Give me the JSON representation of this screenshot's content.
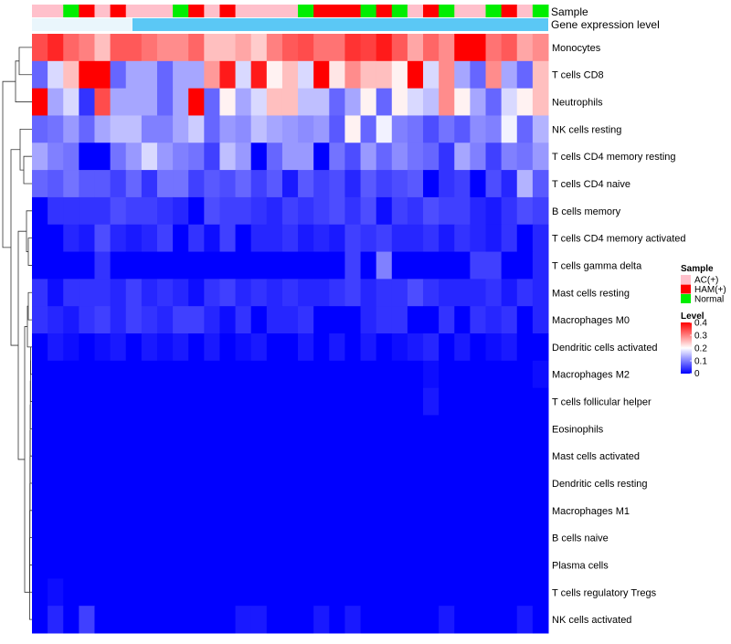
{
  "chart_data": {
    "type": "heatmap",
    "annotation_labels": [
      "Sample",
      "Gene expression level"
    ],
    "rows": [
      "Monocytes",
      "T cells CD8",
      "Neutrophils",
      "NK cells resting",
      "T cells CD4 memory resting",
      "T cells CD4 naive",
      "B cells memory",
      "T cells CD4 memory activated",
      "T cells gamma delta",
      "Mast cells resting",
      "Macrophages M0",
      "Dendritic cells activated",
      "Macrophages M2",
      "T cells follicular helper",
      "Eosinophils",
      "Mast cells activated",
      "Dendritic cells resting",
      "Macrophages M1",
      "B cells naive",
      "Plasma cells",
      "T cells regulatory  Tregs",
      "NK cells activated"
    ],
    "sample_groups": [
      "A",
      "A",
      "N",
      "H",
      "A",
      "H",
      "A",
      "A",
      "A",
      "N",
      "H",
      "A",
      "H",
      "A",
      "A",
      "A",
      "A",
      "N",
      "H",
      "H",
      "H",
      "N",
      "H",
      "N",
      "A",
      "H",
      "N",
      "A",
      "A",
      "N",
      "H",
      "A",
      "N"
    ],
    "values": [
      [
        0.34,
        0.37,
        0.32,
        0.3,
        0.25,
        0.33,
        0.33,
        0.31,
        0.29,
        0.29,
        0.32,
        0.25,
        0.25,
        0.27,
        0.24,
        0.3,
        0.33,
        0.34,
        0.31,
        0.31,
        0.36,
        0.35,
        0.38,
        0.33,
        0.27,
        0.32,
        0.29,
        0.4,
        0.4,
        0.31,
        0.33,
        0.27,
        0.29
      ],
      [
        0.08,
        0.17,
        0.25,
        0.4,
        0.4,
        0.08,
        0.13,
        0.13,
        0.08,
        0.13,
        0.13,
        0.28,
        0.38,
        0.17,
        0.38,
        0.21,
        0.25,
        0.17,
        0.4,
        0.22,
        0.29,
        0.25,
        0.25,
        0.21,
        0.4,
        0.17,
        0.29,
        0.13,
        0.08,
        0.29,
        0.13,
        0.08,
        0.25
      ],
      [
        0.4,
        0.13,
        0.17,
        0.04,
        0.34,
        0.13,
        0.13,
        0.13,
        0.08,
        0.13,
        0.4,
        0.08,
        0.21,
        0.13,
        0.17,
        0.25,
        0.25,
        0.15,
        0.15,
        0.08,
        0.13,
        0.21,
        0.08,
        0.21,
        0.17,
        0.15,
        0.29,
        0.21,
        0.13,
        0.08,
        0.17,
        0.21,
        0.25
      ],
      [
        0.08,
        0.09,
        0.12,
        0.08,
        0.13,
        0.15,
        0.15,
        0.1,
        0.1,
        0.13,
        0.16,
        0.08,
        0.12,
        0.11,
        0.15,
        0.13,
        0.12,
        0.11,
        0.12,
        0.07,
        0.21,
        0.08,
        0.19,
        0.1,
        0.09,
        0.06,
        0.09,
        0.07,
        0.11,
        0.1,
        0.19,
        0.08,
        0.14
      ],
      [
        0.13,
        0.1,
        0.09,
        0.0,
        0.0,
        0.09,
        0.12,
        0.17,
        0.12,
        0.1,
        0.09,
        0.05,
        0.15,
        0.12,
        0.0,
        0.08,
        0.12,
        0.12,
        0.0,
        0.09,
        0.06,
        0.12,
        0.08,
        0.11,
        0.09,
        0.08,
        0.04,
        0.13,
        0.1,
        0.05,
        0.1,
        0.09,
        0.12
      ],
      [
        0.08,
        0.07,
        0.09,
        0.07,
        0.07,
        0.05,
        0.08,
        0.04,
        0.09,
        0.09,
        0.05,
        0.07,
        0.06,
        0.08,
        0.05,
        0.07,
        0.02,
        0.07,
        0.05,
        0.06,
        0.03,
        0.07,
        0.05,
        0.06,
        0.07,
        0.0,
        0.04,
        0.05,
        0.0,
        0.06,
        0.03,
        0.14,
        0.07
      ],
      [
        0.0,
        0.04,
        0.04,
        0.04,
        0.04,
        0.06,
        0.05,
        0.05,
        0.04,
        0.03,
        0.0,
        0.06,
        0.05,
        0.05,
        0.04,
        0.03,
        0.05,
        0.04,
        0.05,
        0.06,
        0.04,
        0.06,
        0.01,
        0.05,
        0.04,
        0.06,
        0.05,
        0.05,
        0.03,
        0.02,
        0.04,
        0.06,
        0.05
      ],
      [
        0.0,
        0.0,
        0.03,
        0.02,
        0.06,
        0.03,
        0.02,
        0.03,
        0.05,
        0.0,
        0.04,
        0.01,
        0.05,
        0.0,
        0.03,
        0.03,
        0.04,
        0.02,
        0.03,
        0.02,
        0.05,
        0.04,
        0.05,
        0.03,
        0.03,
        0.04,
        0.02,
        0.04,
        0.03,
        0.02,
        0.04,
        0.0,
        0.03
      ],
      [
        0.0,
        0.0,
        0.0,
        0.0,
        0.04,
        0.0,
        0.0,
        0.0,
        0.0,
        0.0,
        0.0,
        0.0,
        0.0,
        0.0,
        0.0,
        0.0,
        0.0,
        0.0,
        0.0,
        0.0,
        0.05,
        0.0,
        0.1,
        0.0,
        0.0,
        0.0,
        0.0,
        0.0,
        0.05,
        0.05,
        0.0,
        0.0,
        0.03
      ],
      [
        0.04,
        0.01,
        0.04,
        0.04,
        0.04,
        0.03,
        0.05,
        0.03,
        0.04,
        0.03,
        0.01,
        0.04,
        0.05,
        0.03,
        0.04,
        0.03,
        0.04,
        0.03,
        0.03,
        0.04,
        0.05,
        0.03,
        0.04,
        0.04,
        0.06,
        0.04,
        0.03,
        0.03,
        0.03,
        0.04,
        0.02,
        0.04,
        0.03
      ],
      [
        0.04,
        0.03,
        0.02,
        0.04,
        0.05,
        0.03,
        0.05,
        0.04,
        0.03,
        0.05,
        0.05,
        0.03,
        0.01,
        0.04,
        0.0,
        0.03,
        0.03,
        0.04,
        0.0,
        0.0,
        0.0,
        0.03,
        0.04,
        0.04,
        0.0,
        0.0,
        0.04,
        0.0,
        0.04,
        0.03,
        0.04,
        0.0,
        0.03
      ],
      [
        0.0,
        0.02,
        0.01,
        0.0,
        0.01,
        0.02,
        0.0,
        0.02,
        0.01,
        0.02,
        0.0,
        0.02,
        0.0,
        0.01,
        0.02,
        0.0,
        0.0,
        0.02,
        0.0,
        0.02,
        0.0,
        0.02,
        0.0,
        0.01,
        0.02,
        0.03,
        0.0,
        0.02,
        0.0,
        0.01,
        0.02,
        0.0,
        0.0
      ],
      [
        0.0,
        0.0,
        0.0,
        0.0,
        0.0,
        0.0,
        0.0,
        0.0,
        0.0,
        0.0,
        0.0,
        0.0,
        0.0,
        0.0,
        0.0,
        0.0,
        0.0,
        0.0,
        0.0,
        0.0,
        0.0,
        0.0,
        0.0,
        0.0,
        0.0,
        0.01,
        0.0,
        0.0,
        0.0,
        0.0,
        0.0,
        0.0,
        0.01
      ],
      [
        0.0,
        0.0,
        0.0,
        0.0,
        0.0,
        0.0,
        0.0,
        0.0,
        0.0,
        0.0,
        0.0,
        0.0,
        0.0,
        0.0,
        0.0,
        0.0,
        0.0,
        0.0,
        0.0,
        0.0,
        0.0,
        0.0,
        0.0,
        0.0,
        0.0,
        0.02,
        0.0,
        0.0,
        0.0,
        0.0,
        0.0,
        0.0,
        0.0
      ],
      [
        0.0,
        0.0,
        0.0,
        0.0,
        0.0,
        0.0,
        0.0,
        0.0,
        0.0,
        0.0,
        0.0,
        0.0,
        0.0,
        0.0,
        0.0,
        0.0,
        0.0,
        0.0,
        0.0,
        0.0,
        0.0,
        0.0,
        0.0,
        0.0,
        0.0,
        0.0,
        0.0,
        0.0,
        0.0,
        0.0,
        0.0,
        0.0,
        0.0
      ],
      [
        0.0,
        0.0,
        0.0,
        0.0,
        0.0,
        0.0,
        0.0,
        0.0,
        0.0,
        0.0,
        0.0,
        0.0,
        0.0,
        0.0,
        0.0,
        0.0,
        0.0,
        0.0,
        0.0,
        0.0,
        0.0,
        0.0,
        0.0,
        0.0,
        0.0,
        0.0,
        0.0,
        0.0,
        0.0,
        0.0,
        0.0,
        0.0,
        0.0
      ],
      [
        0.0,
        0.0,
        0.0,
        0.0,
        0.0,
        0.0,
        0.0,
        0.0,
        0.0,
        0.0,
        0.0,
        0.0,
        0.0,
        0.0,
        0.0,
        0.0,
        0.0,
        0.0,
        0.0,
        0.0,
        0.0,
        0.0,
        0.0,
        0.0,
        0.0,
        0.0,
        0.0,
        0.0,
        0.0,
        0.0,
        0.0,
        0.0,
        0.0
      ],
      [
        0.0,
        0.0,
        0.0,
        0.0,
        0.0,
        0.0,
        0.0,
        0.0,
        0.0,
        0.0,
        0.0,
        0.0,
        0.0,
        0.0,
        0.0,
        0.0,
        0.0,
        0.0,
        0.0,
        0.0,
        0.0,
        0.0,
        0.0,
        0.0,
        0.0,
        0.0,
        0.0,
        0.0,
        0.0,
        0.0,
        0.0,
        0.0,
        0.0
      ],
      [
        0.0,
        0.0,
        0.0,
        0.0,
        0.0,
        0.0,
        0.0,
        0.0,
        0.0,
        0.0,
        0.0,
        0.0,
        0.0,
        0.0,
        0.0,
        0.0,
        0.0,
        0.0,
        0.0,
        0.0,
        0.0,
        0.0,
        0.0,
        0.0,
        0.0,
        0.0,
        0.0,
        0.0,
        0.0,
        0.0,
        0.0,
        0.0,
        0.0
      ],
      [
        0.0,
        0.0,
        0.0,
        0.0,
        0.0,
        0.0,
        0.0,
        0.0,
        0.0,
        0.0,
        0.0,
        0.0,
        0.0,
        0.0,
        0.0,
        0.0,
        0.0,
        0.0,
        0.0,
        0.0,
        0.0,
        0.0,
        0.0,
        0.0,
        0.0,
        0.0,
        0.0,
        0.0,
        0.0,
        0.0,
        0.0,
        0.0,
        0.0
      ],
      [
        0.0,
        0.01,
        0.0,
        0.0,
        0.0,
        0.0,
        0.0,
        0.0,
        0.0,
        0.0,
        0.0,
        0.0,
        0.0,
        0.0,
        0.0,
        0.0,
        0.0,
        0.0,
        0.0,
        0.0,
        0.0,
        0.0,
        0.0,
        0.0,
        0.0,
        0.0,
        0.0,
        0.0,
        0.0,
        0.0,
        0.0,
        0.0,
        0.0
      ],
      [
        0.0,
        0.03,
        0.0,
        0.05,
        0.0,
        0.0,
        0.0,
        0.0,
        0.0,
        0.0,
        0.0,
        0.0,
        0.0,
        0.02,
        0.02,
        0.0,
        0.0,
        0.0,
        0.02,
        0.0,
        0.02,
        0.0,
        0.0,
        0.0,
        0.0,
        0.0,
        0.02,
        0.0,
        0.0,
        0.0,
        0.0,
        0.02,
        0.0
      ]
    ],
    "legend": {
      "sample": {
        "title": "Sample",
        "entries": [
          {
            "key": "A",
            "label": "AC(+)",
            "color": "#ffc0cb"
          },
          {
            "key": "H",
            "label": "HAM(+)",
            "color": "#ff0000"
          },
          {
            "key": "N",
            "label": "Normal",
            "color": "#00ee00"
          }
        ]
      },
      "level": {
        "title": "Level",
        "ticks": [
          "0.4",
          "0.3",
          "0.2",
          "0.1",
          "0"
        ],
        "tick_values": [
          0.4,
          0.3,
          0.2,
          0.1,
          0
        ],
        "range": [
          0,
          0.4
        ]
      }
    },
    "colors": {
      "low": "#0000ff",
      "mid": "#ffffff",
      "high": "#ff0000",
      "expression_bar": "#5bc8f5"
    }
  }
}
